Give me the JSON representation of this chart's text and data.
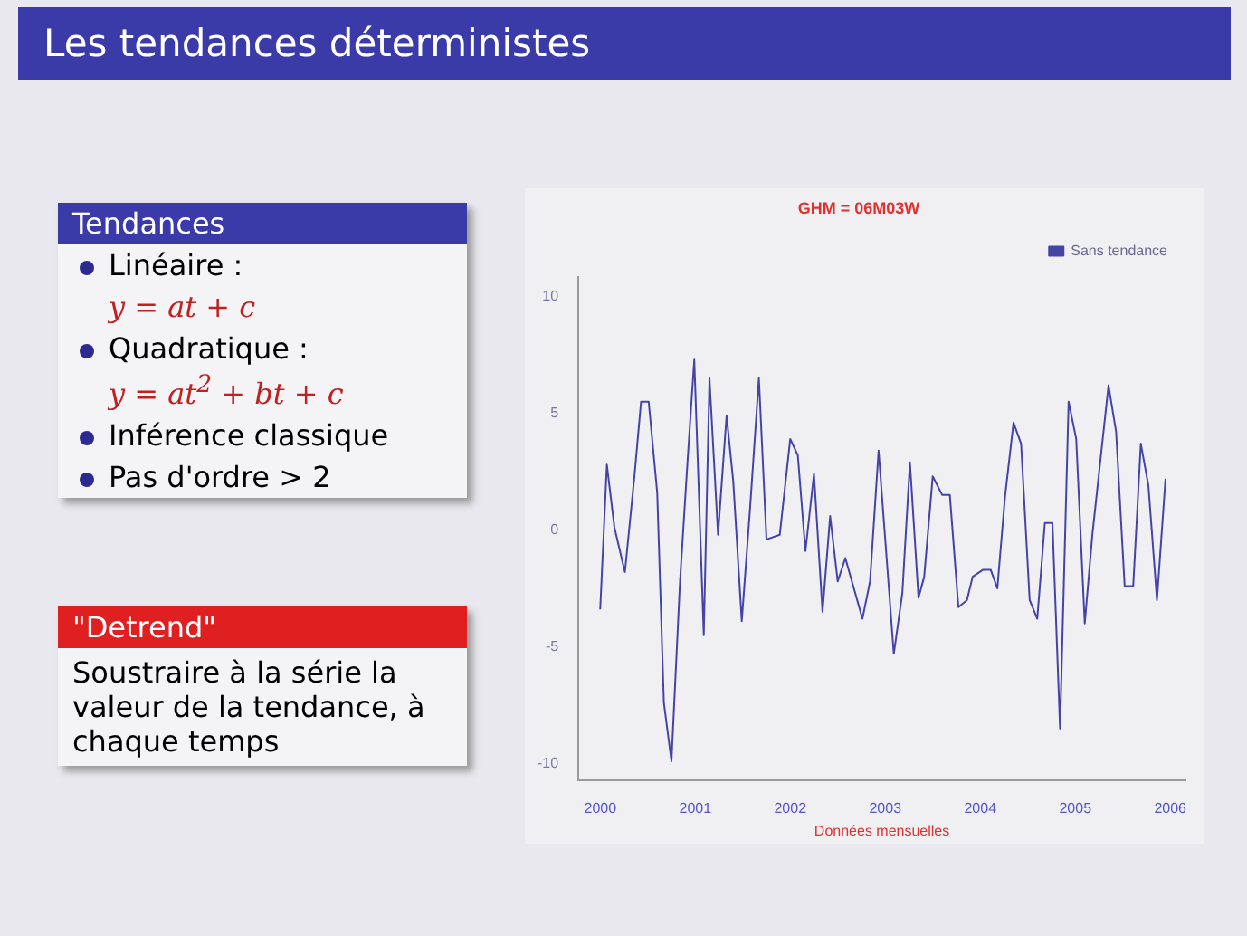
{
  "chart_data": {
    "type": "line",
    "title": "Les tendances déterministes",
    "subtitle": "GHM = 06M03W",
    "xlabel": "Données mensuelles",
    "annotations": [
      "Tendances",
      "Linéaire :",
      "y = at + c",
      "Quadratique :",
      "y = at$^{2}$ + bt + c",
      "Inférence classique",
      "Pas d'ordre > 2",
      "\"Detrend\"",
      "Soustraire à la série la valeur de la tendance, à chaque temps"
    ],
    "x": [
      2000.0,
      2000.07,
      2000.15,
      2000.26,
      2000.36,
      2000.43,
      2000.51,
      2000.6,
      2000.67,
      2000.75,
      2000.84,
      2000.92,
      2000.99,
      2001.09,
      2001.15,
      2001.24,
      2001.33,
      2001.4,
      2001.49,
      2001.58,
      2001.67,
      2001.75,
      2001.89,
      2002.0,
      2002.08,
      2002.16,
      2002.25,
      2002.34,
      2002.42,
      2002.5,
      2002.58,
      2002.76,
      2002.84,
      2002.93,
      2003.09,
      2003.18,
      2003.26,
      2003.35,
      2003.41,
      2003.5,
      2003.6,
      2003.68,
      2003.77,
      2003.86,
      2003.92,
      2004.03,
      2004.11,
      2004.18,
      2004.26,
      2004.35,
      2004.43,
      2004.52,
      2004.6,
      2004.68,
      2004.76,
      2004.84,
      2004.93,
      2005.01,
      2005.1,
      2005.18,
      2005.35,
      2005.43,
      2005.52,
      2005.61,
      2005.69,
      2005.77,
      2005.86,
      2005.95
    ],
    "series": [
      {
        "name": "Sans tendance",
        "color": "#4444a8",
        "values": [
          -3.4,
          2.8,
          0.1,
          -1.8,
          2.3,
          5.5,
          5.5,
          1.6,
          -7.4,
          -9.9,
          -2.2,
          3.0,
          7.3,
          -4.5,
          6.5,
          -0.2,
          4.9,
          2.1,
          -3.9,
          1.1,
          6.5,
          -0.4,
          -0.2,
          3.9,
          3.2,
          -0.9,
          2.4,
          -3.5,
          0.6,
          -2.2,
          -1.2,
          -3.8,
          -2.2,
          3.4,
          -5.3,
          -2.7,
          2.9,
          -2.9,
          -2.0,
          2.3,
          1.5,
          1.5,
          -3.3,
          -3.0,
          -2.0,
          -1.7,
          -1.7,
          -2.5,
          1.4,
          4.6,
          3.7,
          -3.0,
          -3.8,
          0.3,
          0.3,
          -8.5,
          5.5,
          3.9,
          -4.0,
          -0.2,
          6.2,
          4.2,
          -2.4,
          -2.4,
          3.7,
          1.9,
          -3.0,
          2.2
        ]
      }
    ],
    "xlim": [
      1999.77,
      2006.16
    ],
    "xticks": [
      2000,
      2001,
      2002,
      2003,
      2004,
      2005,
      2006
    ],
    "ylim": [
      -10.7,
      10.85
    ],
    "yticks": [
      -10,
      -5,
      0,
      5,
      10
    ],
    "grid": false,
    "legend": "top right",
    "marker": "none",
    "line_style": "solid"
  }
}
